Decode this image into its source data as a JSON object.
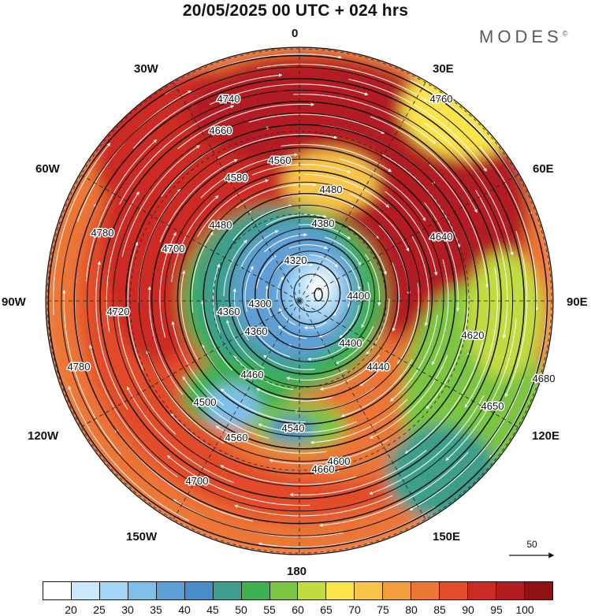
{
  "title": "20/05/2025  00 UTC  + 024 hrs",
  "brand": {
    "name": "MODES",
    "mark": "©"
  },
  "longitude_labels": [
    "0",
    "30E",
    "60E",
    "90E",
    "120E",
    "150E",
    "180",
    "150W",
    "120W",
    "90W",
    "60W",
    "30W"
  ],
  "reference_vector": {
    "value": "50",
    "icon": "arrow-right-icon"
  },
  "contour_labels": [
    "4740",
    "4760",
    "4660",
    "4560",
    "4580",
    "4480",
    "4380",
    "4320",
    "4300",
    "4360",
    "4400",
    "4440",
    "4460",
    "4500",
    "4540",
    "4560",
    "4600",
    "4620",
    "4650",
    "4680",
    "4700",
    "4720",
    "4780",
    "4780",
    "4640",
    "4360",
    "4400",
    "4480",
    "4660",
    "4700"
  ],
  "colorbar": {
    "colors": [
      "#ffffff",
      "#c9e9fb",
      "#a2d6f4",
      "#7fbfe8",
      "#5e9fd6",
      "#4a8cc7",
      "#3e9e8c",
      "#3db04f",
      "#7cc542",
      "#c1dc3f",
      "#fbe34b",
      "#f8c54a",
      "#f39f3e",
      "#ec7634",
      "#e24c2b",
      "#cc2a24",
      "#b31d20",
      "#8e1214"
    ],
    "ticks": [
      "20",
      "25",
      "30",
      "35",
      "40",
      "45",
      "50",
      "55",
      "60",
      "65",
      "70",
      "75",
      "80",
      "85",
      "90",
      "95",
      "100"
    ]
  }
}
